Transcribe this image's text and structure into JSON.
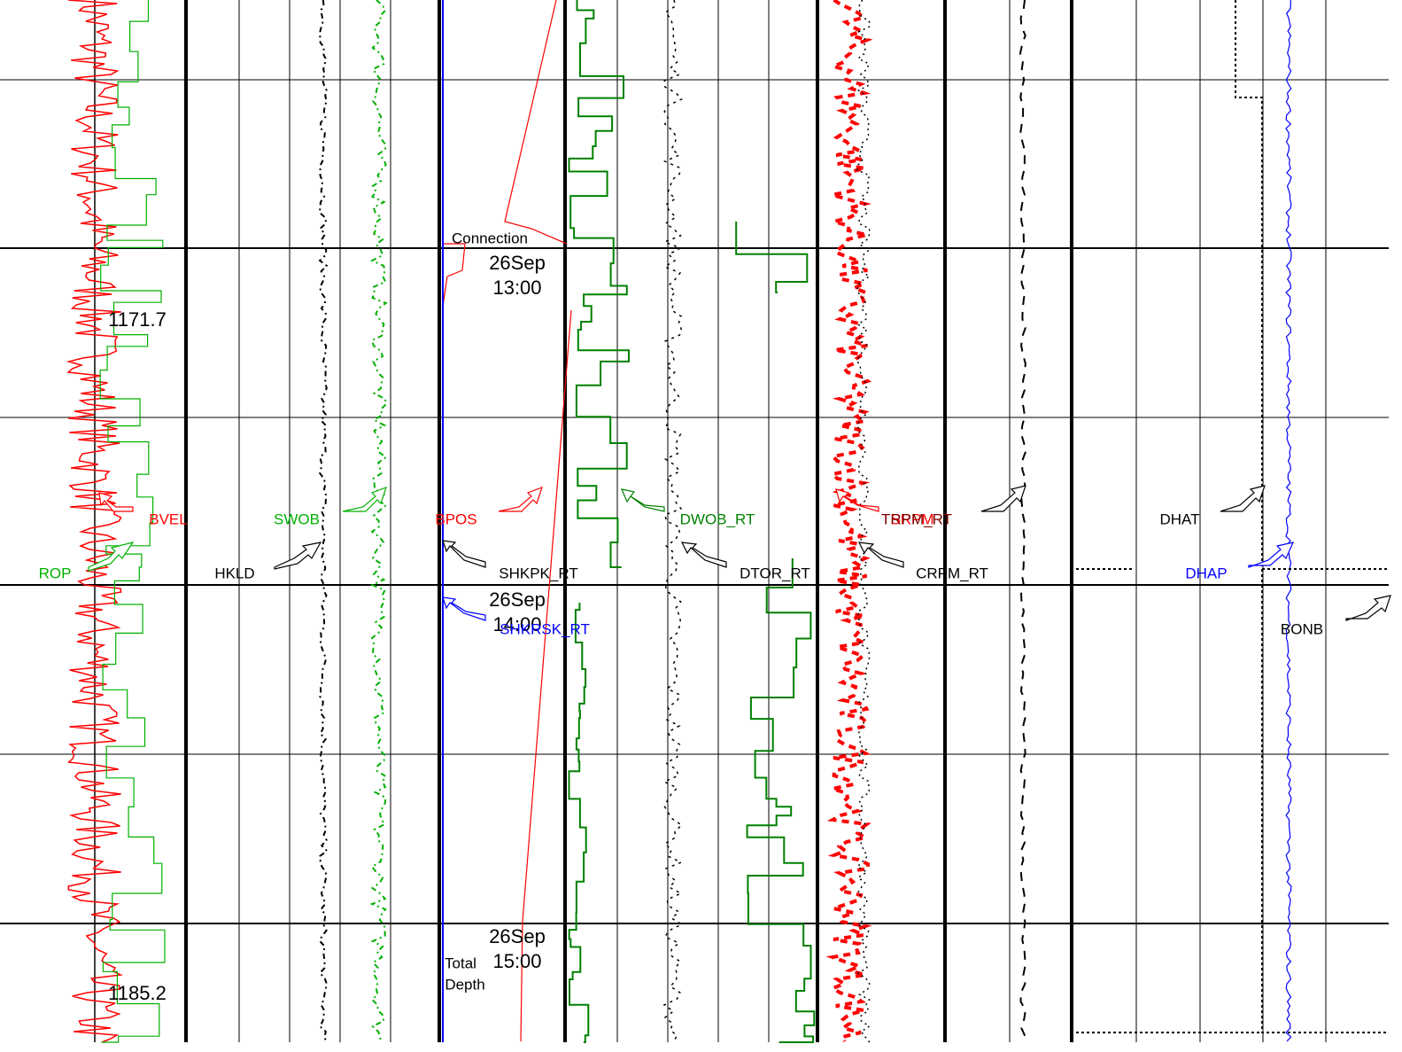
{
  "depth_labels": [
    "1171.7",
    "1185.2"
  ],
  "time_marks": [
    {
      "date": "26Sep",
      "time": "13:00"
    },
    {
      "date": "26Sep",
      "time": "14:00"
    },
    {
      "date": "26Sep",
      "time": "15:00"
    }
  ],
  "annotations": [
    "Connection",
    "Total",
    "Depth"
  ],
  "curve_labels": [
    {
      "text": "BVEL",
      "color": "#ff0000"
    },
    {
      "text": "SWOB",
      "color": "#00b000"
    },
    {
      "text": "BPOS",
      "color": "#ff0000"
    },
    {
      "text": "DWOB_RT",
      "color": "#008000"
    },
    {
      "text": "SRPM",
      "color": "#ff0000"
    },
    {
      "text": "TRPM_RT",
      "color": "#800000"
    },
    {
      "text": "DHAT",
      "color": "#000000"
    },
    {
      "text": "ROP",
      "color": "#00b000"
    },
    {
      "text": "HKLD",
      "color": "#000000"
    },
    {
      "text": "SHKPK_RT",
      "color": "#000000"
    },
    {
      "text": "DTOR_RT",
      "color": "#000000"
    },
    {
      "text": "CRPM_RT",
      "color": "#000000"
    },
    {
      "text": "DHAP",
      "color": "#0000ff"
    },
    {
      "text": "SHKRSK_RT",
      "color": "#0000ff"
    },
    {
      "text": "BONB",
      "color": "#000000"
    }
  ]
}
